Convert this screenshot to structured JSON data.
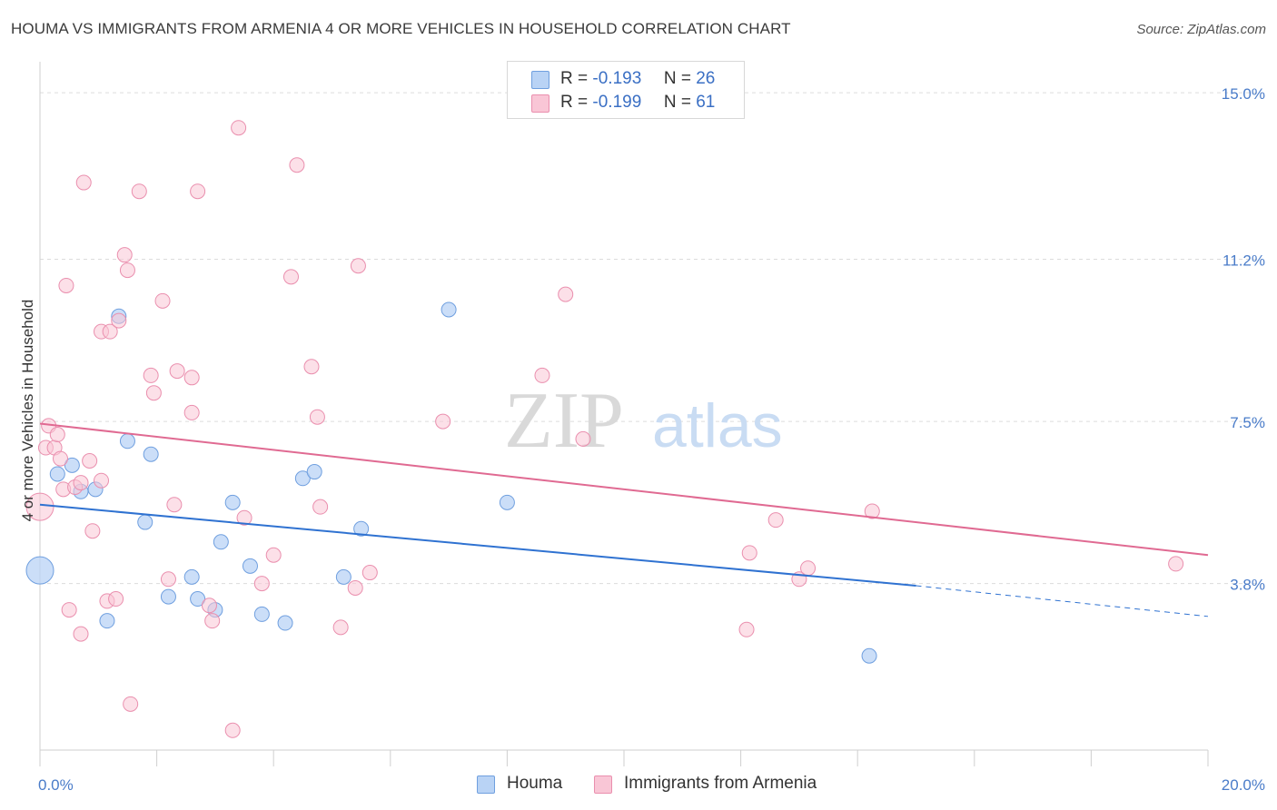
{
  "title": "HOUMA VS IMMIGRANTS FROM ARMENIA 4 OR MORE VEHICLES IN HOUSEHOLD CORRELATION CHART",
  "source": "Source: ZipAtlas.com",
  "watermark": {
    "zip": "ZIP",
    "atlas": "atlas"
  },
  "legend": {
    "houma": {
      "r_label": "R =",
      "r_value": "-0.193",
      "n_label": "N =",
      "n_value": "26"
    },
    "armenia": {
      "r_label": "R =",
      "r_value": "-0.199",
      "n_label": "N =",
      "n_value": "61"
    }
  },
  "bottom_legend": {
    "houma": "Houma",
    "armenia": "Immigrants from Armenia"
  },
  "colors": {
    "houma_fill": "#b9d3f5",
    "houma_stroke": "#6f9fdf",
    "houma_line": "#2f72d1",
    "armenia_fill": "#f9c6d6",
    "armenia_stroke": "#ea8fae",
    "armenia_line": "#e06a92",
    "grid": "#dcdcdc",
    "axis_text": "#4a7cc9"
  },
  "chart_data": {
    "type": "scatter",
    "title": "HOUMA VS IMMIGRANTS FROM ARMENIA 4 OR MORE VEHICLES IN HOUSEHOLD CORRELATION CHART",
    "xlabel": "",
    "ylabel": "4 or more Vehicles in Household",
    "xlim": [
      0,
      20
    ],
    "ylim": [
      0,
      15.5
    ],
    "x_tick_labels": [
      {
        "value": 0,
        "label": "0.0%"
      },
      {
        "value": 20,
        "label": "20.0%"
      }
    ],
    "y_ticks": [
      {
        "value": 3.8,
        "label": "3.8%"
      },
      {
        "value": 7.5,
        "label": "7.5%"
      },
      {
        "value": 11.2,
        "label": "11.2%"
      },
      {
        "value": 15.0,
        "label": "15.0%"
      }
    ],
    "x_minor_ticks": [
      2,
      4,
      6,
      8,
      10,
      12,
      14,
      16,
      18
    ],
    "series": [
      {
        "name": "Houma",
        "points": [
          {
            "x": 0.0,
            "y": 4.1,
            "big": true
          },
          {
            "x": 0.3,
            "y": 6.3
          },
          {
            "x": 0.55,
            "y": 6.5
          },
          {
            "x": 0.7,
            "y": 5.9
          },
          {
            "x": 0.95,
            "y": 5.95
          },
          {
            "x": 1.15,
            "y": 2.95
          },
          {
            "x": 1.35,
            "y": 9.9
          },
          {
            "x": 1.5,
            "y": 7.05
          },
          {
            "x": 1.8,
            "y": 5.2
          },
          {
            "x": 1.9,
            "y": 6.75
          },
          {
            "x": 2.2,
            "y": 3.5
          },
          {
            "x": 2.6,
            "y": 3.95
          },
          {
            "x": 2.7,
            "y": 3.45
          },
          {
            "x": 3.0,
            "y": 3.2
          },
          {
            "x": 3.1,
            "y": 4.75
          },
          {
            "x": 3.3,
            "y": 5.65
          },
          {
            "x": 3.6,
            "y": 4.2
          },
          {
            "x": 3.8,
            "y": 3.1
          },
          {
            "x": 4.2,
            "y": 2.9
          },
          {
            "x": 4.5,
            "y": 6.2
          },
          {
            "x": 4.7,
            "y": 6.35
          },
          {
            "x": 5.2,
            "y": 3.95
          },
          {
            "x": 5.5,
            "y": 5.05
          },
          {
            "x": 7.0,
            "y": 10.05
          },
          {
            "x": 8.0,
            "y": 5.65
          },
          {
            "x": 14.2,
            "y": 2.15
          }
        ],
        "trend": {
          "x0": 0.0,
          "y0": 5.6,
          "x1": 15.0,
          "y1": 3.75,
          "dash_to_x": 20.0,
          "dash_to_y": 3.05
        }
      },
      {
        "name": "Immigrants from Armenia",
        "points": [
          {
            "x": 0.0,
            "y": 5.55,
            "big": true
          },
          {
            "x": 0.1,
            "y": 6.9
          },
          {
            "x": 0.15,
            "y": 7.4
          },
          {
            "x": 0.25,
            "y": 6.9
          },
          {
            "x": 0.3,
            "y": 7.2
          },
          {
            "x": 0.35,
            "y": 6.65
          },
          {
            "x": 0.4,
            "y": 5.95
          },
          {
            "x": 0.45,
            "y": 10.6
          },
          {
            "x": 0.5,
            "y": 3.2
          },
          {
            "x": 0.6,
            "y": 6.0
          },
          {
            "x": 0.7,
            "y": 6.1
          },
          {
            "x": 0.7,
            "y": 2.65
          },
          {
            "x": 0.75,
            "y": 12.95
          },
          {
            "x": 0.85,
            "y": 6.6
          },
          {
            "x": 0.9,
            "y": 5.0
          },
          {
            "x": 1.05,
            "y": 6.15
          },
          {
            "x": 1.05,
            "y": 9.55
          },
          {
            "x": 1.15,
            "y": 3.4
          },
          {
            "x": 1.2,
            "y": 9.55
          },
          {
            "x": 1.3,
            "y": 3.45
          },
          {
            "x": 1.35,
            "y": 9.8
          },
          {
            "x": 1.45,
            "y": 11.3
          },
          {
            "x": 1.5,
            "y": 10.95
          },
          {
            "x": 1.55,
            "y": 1.05
          },
          {
            "x": 1.7,
            "y": 12.75
          },
          {
            "x": 1.9,
            "y": 8.55
          },
          {
            "x": 1.95,
            "y": 8.15
          },
          {
            "x": 2.1,
            "y": 10.25
          },
          {
            "x": 2.2,
            "y": 3.9
          },
          {
            "x": 2.3,
            "y": 5.6
          },
          {
            "x": 2.35,
            "y": 8.65
          },
          {
            "x": 2.6,
            "y": 7.7
          },
          {
            "x": 2.6,
            "y": 8.5
          },
          {
            "x": 2.7,
            "y": 12.75
          },
          {
            "x": 2.9,
            "y": 3.3
          },
          {
            "x": 2.95,
            "y": 2.95
          },
          {
            "x": 3.3,
            "y": 0.45
          },
          {
            "x": 3.4,
            "y": 14.2
          },
          {
            "x": 3.5,
            "y": 5.3
          },
          {
            "x": 3.8,
            "y": 3.8
          },
          {
            "x": 4.0,
            "y": 4.45
          },
          {
            "x": 4.3,
            "y": 10.8
          },
          {
            "x": 4.4,
            "y": 13.35
          },
          {
            "x": 4.65,
            "y": 8.75
          },
          {
            "x": 4.75,
            "y": 7.6
          },
          {
            "x": 4.8,
            "y": 5.55
          },
          {
            "x": 5.15,
            "y": 2.8
          },
          {
            "x": 5.4,
            "y": 3.7
          },
          {
            "x": 5.45,
            "y": 11.05
          },
          {
            "x": 5.65,
            "y": 4.05
          },
          {
            "x": 6.9,
            "y": 7.5
          },
          {
            "x": 8.6,
            "y": 8.55
          },
          {
            "x": 9.0,
            "y": 10.4
          },
          {
            "x": 9.3,
            "y": 7.1
          },
          {
            "x": 12.1,
            "y": 2.75
          },
          {
            "x": 12.15,
            "y": 4.5
          },
          {
            "x": 12.6,
            "y": 5.25
          },
          {
            "x": 13.0,
            "y": 3.9
          },
          {
            "x": 13.15,
            "y": 4.15
          },
          {
            "x": 14.25,
            "y": 5.45
          },
          {
            "x": 19.45,
            "y": 4.25
          }
        ],
        "trend": {
          "x0": 0.0,
          "y0": 7.45,
          "x1": 20.0,
          "y1": 4.45
        }
      }
    ]
  }
}
